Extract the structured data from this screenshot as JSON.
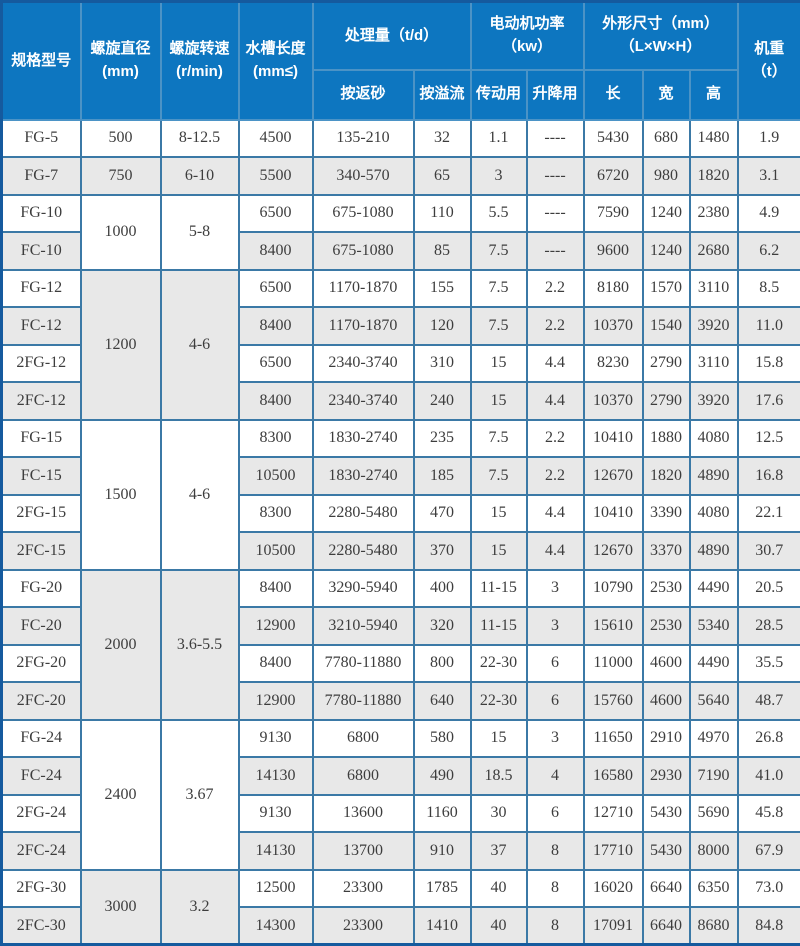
{
  "colors": {
    "header_bg": "#0d76c0",
    "header_text": "#ffffff",
    "header_border": "#4b93c6",
    "body_border": "#3b79a6",
    "outer_border": "#155a9e",
    "row_white": "#ffffff",
    "row_gray": "#e8e8e8",
    "cell_text": "#3d3d3d"
  },
  "chart_data": {
    "type": "table",
    "title": "",
    "header": {
      "top": [
        {
          "label": "规格型号"
        },
        {
          "label": "螺旋直径\n(mm)"
        },
        {
          "label": "螺旋转速\n(r/min)"
        },
        {
          "label": "水槽长度\n(mm≤)"
        },
        {
          "label": "处理量（t/d）"
        },
        {
          "label": "电动机功率\n（kw）"
        },
        {
          "label": "外形尺寸（mm）\n（L×W×H）"
        },
        {
          "label": "机重\n（t）"
        }
      ],
      "sub": [
        "按返砂",
        "按溢流",
        "传动用",
        "升降用",
        "长",
        "宽",
        "高"
      ]
    },
    "value_columns": [
      "水槽长度",
      "处理量按返砂",
      "处理量按溢流",
      "电动机功率传动用",
      "电动机功率升降用",
      "长",
      "宽",
      "高",
      "机重"
    ],
    "groups": [
      {
        "diameter": "500",
        "speed": "8-12.5",
        "cell_shade": "white",
        "rows": [
          {
            "model": "FG-5",
            "shade": "white",
            "values": [
              "4500",
              "135-210",
              "32",
              "1.1",
              "----",
              "5430",
              "680",
              "1480",
              "1.9"
            ]
          }
        ]
      },
      {
        "diameter": "750",
        "speed": "6-10",
        "cell_shade": "gray",
        "rows": [
          {
            "model": "FG-7",
            "shade": "gray",
            "values": [
              "5500",
              "340-570",
              "65",
              "3",
              "----",
              "6720",
              "980",
              "1820",
              "3.1"
            ]
          }
        ]
      },
      {
        "diameter": "1000",
        "speed": "5-8",
        "cell_shade": "white",
        "rows": [
          {
            "model": "FG-10",
            "shade": "white",
            "values": [
              "6500",
              "675-1080",
              "110",
              "5.5",
              "----",
              "7590",
              "1240",
              "2380",
              "4.9"
            ]
          },
          {
            "model": "FC-10",
            "shade": "gray",
            "values": [
              "8400",
              "675-1080",
              "85",
              "7.5",
              "----",
              "9600",
              "1240",
              "2680",
              "6.2"
            ]
          }
        ]
      },
      {
        "diameter": "1200",
        "speed": "4-6",
        "cell_shade": "gray",
        "rows": [
          {
            "model": "FG-12",
            "shade": "white",
            "values": [
              "6500",
              "1170-1870",
              "155",
              "7.5",
              "2.2",
              "8180",
              "1570",
              "3110",
              "8.5"
            ]
          },
          {
            "model": "FC-12",
            "shade": "gray",
            "values": [
              "8400",
              "1170-1870",
              "120",
              "7.5",
              "2.2",
              "10370",
              "1540",
              "3920",
              "11.0"
            ]
          },
          {
            "model": "2FG-12",
            "shade": "white",
            "values": [
              "6500",
              "2340-3740",
              "310",
              "15",
              "4.4",
              "8230",
              "2790",
              "3110",
              "15.8"
            ]
          },
          {
            "model": "2FC-12",
            "shade": "gray",
            "values": [
              "8400",
              "2340-3740",
              "240",
              "15",
              "4.4",
              "10370",
              "2790",
              "3920",
              "17.6"
            ]
          }
        ]
      },
      {
        "diameter": "1500",
        "speed": "4-6",
        "cell_shade": "white",
        "rows": [
          {
            "model": "FG-15",
            "shade": "white",
            "values": [
              "8300",
              "1830-2740",
              "235",
              "7.5",
              "2.2",
              "10410",
              "1880",
              "4080",
              "12.5"
            ]
          },
          {
            "model": "FC-15",
            "shade": "gray",
            "values": [
              "10500",
              "1830-2740",
              "185",
              "7.5",
              "2.2",
              "12670",
              "1820",
              "4890",
              "16.8"
            ]
          },
          {
            "model": "2FG-15",
            "shade": "white",
            "values": [
              "8300",
              "2280-5480",
              "470",
              "15",
              "4.4",
              "10410",
              "3390",
              "4080",
              "22.1"
            ]
          },
          {
            "model": "2FC-15",
            "shade": "gray",
            "values": [
              "10500",
              "2280-5480",
              "370",
              "15",
              "4.4",
              "12670",
              "3370",
              "4890",
              "30.7"
            ]
          }
        ]
      },
      {
        "diameter": "2000",
        "speed": "3.6-5.5",
        "cell_shade": "gray",
        "rows": [
          {
            "model": "FG-20",
            "shade": "white",
            "values": [
              "8400",
              "3290-5940",
              "400",
              "11-15",
              "3",
              "10790",
              "2530",
              "4490",
              "20.5"
            ]
          },
          {
            "model": "FC-20",
            "shade": "gray",
            "values": [
              "12900",
              "3210-5940",
              "320",
              "11-15",
              "3",
              "15610",
              "2530",
              "5340",
              "28.5"
            ]
          },
          {
            "model": "2FG-20",
            "shade": "white",
            "values": [
              "8400",
              "7780-11880",
              "800",
              "22-30",
              "6",
              "11000",
              "4600",
              "4490",
              "35.5"
            ]
          },
          {
            "model": "2FC-20",
            "shade": "gray",
            "values": [
              "12900",
              "7780-11880",
              "640",
              "22-30",
              "6",
              "15760",
              "4600",
              "5640",
              "48.7"
            ]
          }
        ]
      },
      {
        "diameter": "2400",
        "speed": "3.67",
        "cell_shade": "white",
        "rows": [
          {
            "model": "FG-24",
            "shade": "white",
            "values": [
              "9130",
              "6800",
              "580",
              "15",
              "3",
              "11650",
              "2910",
              "4970",
              "26.8"
            ]
          },
          {
            "model": "FC-24",
            "shade": "gray",
            "values": [
              "14130",
              "6800",
              "490",
              "18.5",
              "4",
              "16580",
              "2930",
              "7190",
              "41.0"
            ]
          },
          {
            "model": "2FG-24",
            "shade": "white",
            "values": [
              "9130",
              "13600",
              "1160",
              "30",
              "6",
              "12710",
              "5430",
              "5690",
              "45.8"
            ]
          },
          {
            "model": "2FC-24",
            "shade": "gray",
            "values": [
              "14130",
              "13700",
              "910",
              "37",
              "8",
              "17710",
              "5430",
              "8000",
              "67.9"
            ]
          }
        ]
      },
      {
        "diameter": "3000",
        "speed": "3.2",
        "cell_shade": "gray",
        "rows": [
          {
            "model": "2FG-30",
            "shade": "white",
            "values": [
              "12500",
              "23300",
              "1785",
              "40",
              "8",
              "16020",
              "6640",
              "6350",
              "73.0"
            ]
          },
          {
            "model": "2FC-30",
            "shade": "gray",
            "values": [
              "14300",
              "23300",
              "1410",
              "40",
              "8",
              "17091",
              "6640",
              "8680",
              "84.8"
            ]
          }
        ]
      }
    ]
  }
}
